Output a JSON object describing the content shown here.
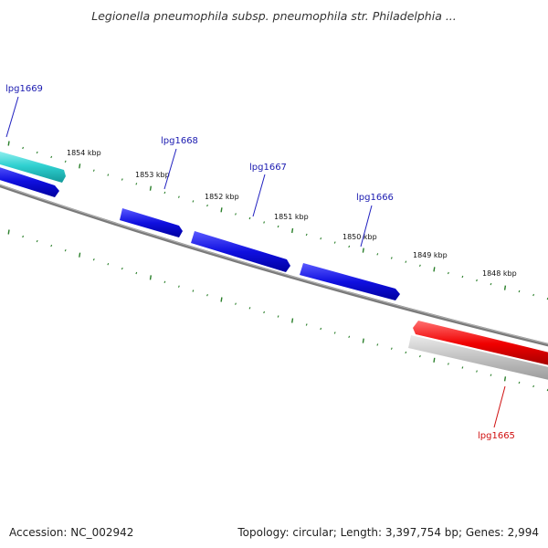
{
  "title": "Legionella pneumophila subsp. pneumophila str. Philadelphia ...",
  "footer": {
    "accession": "Accession: NC_002942",
    "summary": "Topology: circular; Length: 3,397,754 bp; Genes: 2,994"
  },
  "colors": {
    "backbone": "#7f7f7f",
    "tick": "#2a7f2a",
    "forward_gene": "#1010e0",
    "forward_gene_highlight": "#2fd0d0",
    "reverse_gene": "#f00000",
    "reverse_gene_other": "#c0c0c0",
    "label_forward": "#1a1ab0",
    "label_reverse": "#d01010"
  },
  "position_labels": [
    "1854 kbp",
    "1853 kbp",
    "1852 kbp",
    "1851 kbp",
    "1850 kbp",
    "1849 kbp",
    "1848 kbp"
  ],
  "genes": [
    {
      "name": "lpg1669",
      "strand": "forward",
      "color": "cyan"
    },
    {
      "name": "lpg1668",
      "strand": "forward",
      "color": "blue"
    },
    {
      "name": "lpg1667",
      "strand": "forward",
      "color": "blue"
    },
    {
      "name": "lpg1666",
      "strand": "forward",
      "color": "blue"
    },
    {
      "name": "lpg1665",
      "strand": "reverse",
      "color": "red"
    }
  ]
}
